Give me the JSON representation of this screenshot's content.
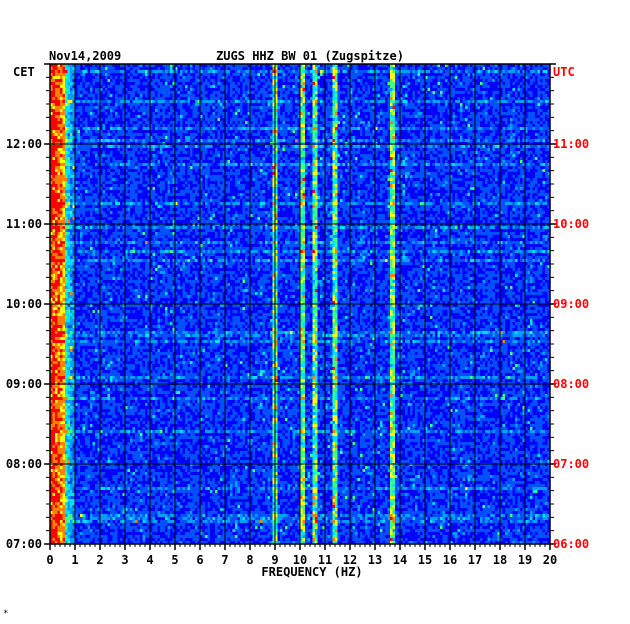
{
  "header": {
    "date": "Nov14,2009",
    "station": "ZUGS HHZ BW 01 (Zugspitze)"
  },
  "chart_data": {
    "type": "heatmap",
    "title": "ZUGS HHZ BW 01 (Zugspitze)",
    "date": "Nov14,2009",
    "xlabel": "FREQUENCY (HZ)",
    "xlim": [
      0,
      20
    ],
    "x_ticks": [
      "0",
      "1",
      "2",
      "3",
      "4",
      "5",
      "6",
      "7",
      "8",
      "9",
      "10",
      "11",
      "12",
      "13",
      "14",
      "15",
      "16",
      "17",
      "18",
      "19",
      "20"
    ],
    "left_axis_label": "CET",
    "right_axis_label": "UTC",
    "left_ticks": [
      "12:00",
      "11:00",
      "10:00",
      "09:00",
      "08:00",
      "07:00"
    ],
    "right_ticks": [
      "11:00",
      "10:00",
      "09:00",
      "08:00",
      "07:00",
      "06:00"
    ],
    "time_range_cet": [
      "07:00",
      "13:00"
    ],
    "colormap": [
      "#0000b4",
      "#0000ff",
      "#0050ff",
      "#00a0ff",
      "#00e0ff",
      "#40ff80",
      "#ffff00",
      "#ff8000",
      "#ff0000"
    ],
    "grid": true,
    "prominent_bands_hz": [
      0.3,
      9.0,
      10.1,
      10.6,
      11.4,
      13.7
    ]
  },
  "footer": {
    "mark": "*"
  },
  "colors": {
    "background": "#ffffff",
    "axis": "#000000",
    "utc_label": "#ff0000",
    "plot_base": "#0000b4"
  }
}
